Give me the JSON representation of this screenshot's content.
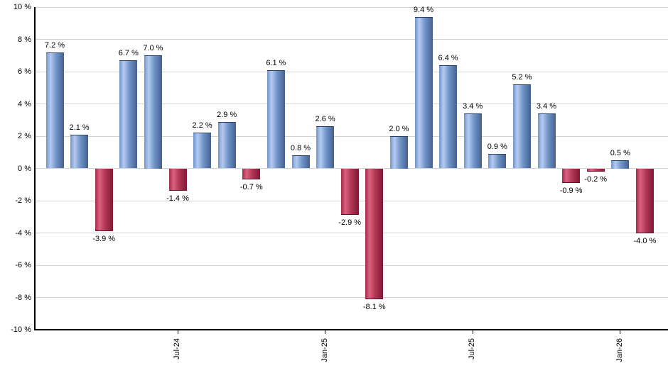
{
  "chart_data": {
    "type": "bar",
    "title": "",
    "xlabel": "",
    "ylabel": "",
    "grid": true,
    "legend": false,
    "ylim": [
      -10,
      10
    ],
    "values": [
      7.2,
      2.1,
      -3.9,
      6.7,
      7.0,
      -1.4,
      2.2,
      2.9,
      -0.7,
      6.1,
      0.8,
      2.6,
      -2.9,
      -8.1,
      2.0,
      9.4,
      6.4,
      3.4,
      0.9,
      5.2,
      3.4,
      -0.9,
      -0.2,
      0.5,
      -4.0
    ],
    "bar_value_labels": [
      "7.2 %",
      "2.1 %",
      "-3.9 %",
      "6.7 %",
      "7.0 %",
      "-1.4 %",
      "2.2 %",
      "2.9 %",
      "-0.7 %",
      "6.1 %",
      "0.8 %",
      "2.6 %",
      "-2.9 %",
      "-8.1 %",
      "2.0 %",
      "9.4 %",
      "6.4 %",
      "3.4 %",
      "0.9 %",
      "5.2 %",
      "3.4 %",
      "-0.9 %",
      "-0.2 %",
      "0.5 %",
      "-4.0 %"
    ],
    "x_ticks": [
      {
        "bar_index": 5,
        "label": "Jul-24"
      },
      {
        "bar_index": 11,
        "label": "Jan-25"
      },
      {
        "bar_index": 17,
        "label": "Jul-25"
      },
      {
        "bar_index": 23,
        "label": "Jan-26"
      }
    ],
    "y_ticks": [
      {
        "value": 10,
        "label": "10 %"
      },
      {
        "value": 8,
        "label": "8 %"
      },
      {
        "value": 6,
        "label": "6 %"
      },
      {
        "value": 4,
        "label": "4 %"
      },
      {
        "value": 2,
        "label": "2 %"
      },
      {
        "value": 0,
        "label": "0 %"
      },
      {
        "value": -2,
        "label": "-2 %"
      },
      {
        "value": -4,
        "label": "-4 %"
      },
      {
        "value": -6,
        "label": "-6 %"
      },
      {
        "value": -8,
        "label": "-8 %"
      },
      {
        "value": -10,
        "label": "-10 %"
      }
    ],
    "colors": {
      "positive_gradient": [
        "#6f93cb",
        "#b6cbf0",
        "#7296c9",
        "#44608f"
      ],
      "positive_border": "#2b3f63",
      "negative_gradient": [
        "#a62949",
        "#da6280",
        "#b23857",
        "#811834"
      ],
      "negative_border": "#5f1226",
      "gridline": "#d3d3d3",
      "axis": "#000000",
      "label_text": "#000000",
      "background": "#ffffff"
    }
  }
}
